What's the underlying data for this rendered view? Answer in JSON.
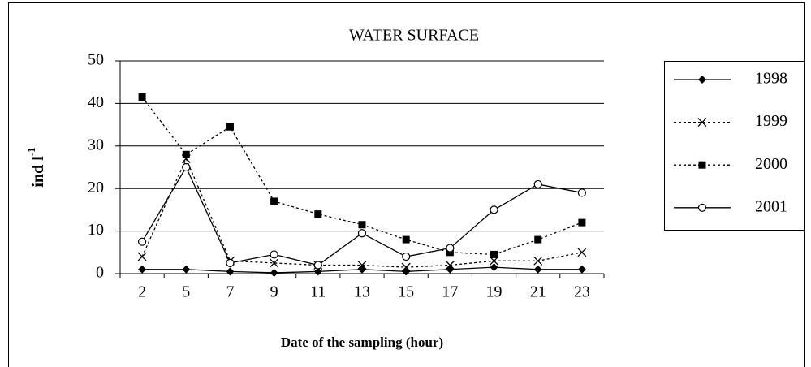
{
  "chart_data": {
    "type": "line",
    "title": "WATER SURFACE",
    "xlabel": "Date of the sampling (hour)",
    "ylabel": "ind l",
    "ylabel_sup": "-1",
    "categories": [
      "2",
      "5",
      "7",
      "9",
      "11",
      "13",
      "15",
      "17",
      "19",
      "21",
      "23"
    ],
    "series": [
      {
        "name": "1998",
        "color": "#000000",
        "line": "solid",
        "marker": "diamond",
        "values": [
          1,
          1,
          0.5,
          0.2,
          0.5,
          1,
          0.5,
          1,
          1.5,
          1,
          1
        ]
      },
      {
        "name": "1999",
        "color": "#000000",
        "line": "dotted",
        "marker": "x",
        "values": [
          4,
          27,
          3,
          2.5,
          2,
          2,
          1.5,
          2,
          3,
          3,
          5
        ]
      },
      {
        "name": "2000",
        "color": "#000000",
        "line": "dotted",
        "marker": "square",
        "values": [
          41.5,
          28,
          34.5,
          17,
          14,
          11.5,
          8,
          5,
          4.5,
          8,
          12
        ]
      },
      {
        "name": "2001",
        "color": "#000000",
        "line": "solid",
        "marker": "circle",
        "values": [
          7.5,
          25,
          2.5,
          4.5,
          2,
          9.5,
          4,
          6,
          15,
          21,
          19
        ]
      }
    ],
    "ylim": [
      0,
      50
    ],
    "yticks": [
      0,
      10,
      20,
      30,
      40,
      50
    ],
    "grid": true,
    "legend": "right"
  }
}
